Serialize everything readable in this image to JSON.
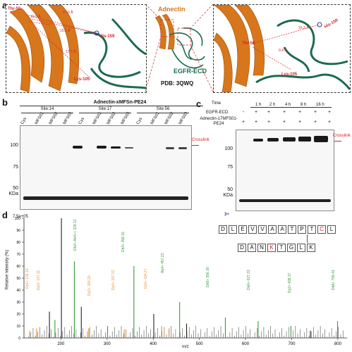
{
  "panel_a": {
    "label": "a",
    "center_title": "Adnectin",
    "center_sub": "EGFR-ECD",
    "pdb": "PDB: 3QWQ",
    "left": {
      "res_thr": "Thr-56",
      "res_his": "His-159",
      "res_lys": "Lys-105",
      "d1": "17.0 Å",
      "d2": "15.1 Å",
      "d3": "17.7 Å",
      "d4": "10.0 Å"
    },
    "right": {
      "res_thr": "Thr-56",
      "res_his": "His-159",
      "res_lys": "Lys-105",
      "d1": "16.2 Å",
      "d2": "9.4 Å"
    }
  },
  "panel_b": {
    "label": "b",
    "title": "Adnectin-xMFSn-PE24",
    "groups": [
      "Site:14",
      "Site:17",
      "Site:56"
    ],
    "lanes": [
      "Cys",
      "MFS01",
      "MFS02",
      "MFS03",
      "Cys",
      "MFS01",
      "MFS02",
      "MFS03",
      "Cys",
      "MFS01",
      "MFS02",
      "MFS03"
    ],
    "mw": [
      "100",
      "75",
      "50",
      "KDa"
    ],
    "crosslink": "Crosslink"
  },
  "panel_c": {
    "label": "c",
    "time_label": "Time",
    "times": [
      "1 h",
      "2 h",
      "4 h",
      "8 h",
      "16 h"
    ],
    "row1_label": "EGFR-ECD",
    "row2_label": "Adnectin-17MFS01-PE24",
    "row1": [
      "-",
      "+",
      "+",
      "+",
      "+",
      "+",
      "+"
    ],
    "row2": [
      "+",
      "+",
      "+",
      "+",
      "+",
      "+",
      "+"
    ],
    "mw": [
      "100",
      "75",
      "50",
      "KDa"
    ],
    "crosslink": "Crosslink"
  },
  "panel_d": {
    "label": "d",
    "ymax_label": "7.5e+05",
    "ylabel": "Relative Intensity (%)",
    "xlabel": "m/z",
    "charge": "3+",
    "seq1": [
      "D",
      "L",
      "E",
      "V",
      "V",
      "A",
      "A",
      "T",
      "P",
      "T",
      "C",
      "L"
    ],
    "seq2": [
      "D",
      "A",
      "N",
      "K",
      "T",
      "G",
      "L",
      "K"
    ],
    "peak_labels_green": [
      "Db2+ Ab4++ 229.12",
      "Db3+ 358.16",
      "Ab4+ 457.23",
      "Db5+ 556.30",
      "Db6+ 627.33",
      "Dy2+ 698.37",
      "Db8+ 799.41"
    ],
    "peak_labels_orange": [
      "Dy1+ 132.10",
      "Dy3+ 147.11",
      "Dy2+ 260.20",
      "Dy4+ 337.22",
      "Dy5+ 434.27"
    ],
    "chart_data": {
      "type": "bar",
      "xlabel": "m/z",
      "ylabel": "Relative Intensity (%)",
      "xlim": [
        120,
        820
      ],
      "ylim": [
        0,
        100
      ],
      "x_ticks": [
        200,
        300,
        400,
        500,
        600,
        700,
        800
      ],
      "y_ticks": [
        0,
        10,
        20,
        30,
        40,
        50,
        60,
        70,
        80,
        90,
        100
      ],
      "peaks": [
        {
          "mz": 132.1,
          "intensity": 6,
          "color": "#e8923a"
        },
        {
          "mz": 147.11,
          "intensity": 8,
          "color": "#e8923a"
        },
        {
          "mz": 175.12,
          "intensity": 22,
          "color": "#222222"
        },
        {
          "mz": 187.07,
          "intensity": 15,
          "color": "#3a9a3a"
        },
        {
          "mz": 201.12,
          "intensity": 100,
          "color": "#222222"
        },
        {
          "mz": 229.12,
          "intensity": 64,
          "color": "#3a9a3a"
        },
        {
          "mz": 244.17,
          "intensity": 26,
          "color": "#222222"
        },
        {
          "mz": 260.2,
          "intensity": 8,
          "color": "#e8923a"
        },
        {
          "mz": 301.15,
          "intensity": 10,
          "color": "#3a9a3a"
        },
        {
          "mz": 337.22,
          "intensity": 7,
          "color": "#e8923a"
        },
        {
          "mz": 358.16,
          "intensity": 60,
          "color": "#3a9a3a"
        },
        {
          "mz": 401.2,
          "intensity": 20,
          "color": "#222222"
        },
        {
          "mz": 418.22,
          "intensity": 10,
          "color": "#e8923a"
        },
        {
          "mz": 434.27,
          "intensity": 8,
          "color": "#e8923a"
        },
        {
          "mz": 457.23,
          "intensity": 30,
          "color": "#3a9a3a"
        },
        {
          "mz": 472.3,
          "intensity": 12,
          "color": "#222222"
        },
        {
          "mz": 556.3,
          "intensity": 17,
          "color": "#3a9a3a"
        },
        {
          "mz": 627.33,
          "intensity": 14,
          "color": "#3a9a3a"
        },
        {
          "mz": 698.37,
          "intensity": 10,
          "color": "#3a9a3a"
        },
        {
          "mz": 740.4,
          "intensity": 6,
          "color": "#222222"
        },
        {
          "mz": 799.41,
          "intensity": 14,
          "color": "#3a9a3a"
        }
      ]
    }
  }
}
